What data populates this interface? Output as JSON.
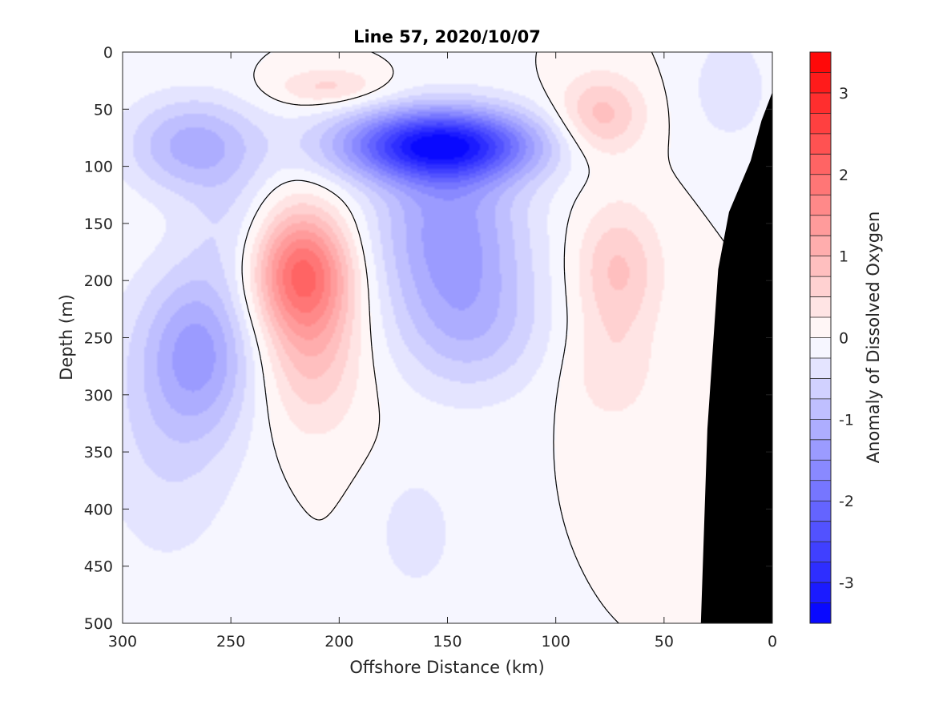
{
  "chart_data": {
    "type": "heatmap",
    "title": "Line 57, 2020/10/07",
    "xlabel": "Offshore Distance (km)",
    "ylabel": "Depth (m)",
    "colorbar_label": "Anomaly of Dissolved Oxygen",
    "xlim": [
      300,
      0
    ],
    "ylim": [
      0,
      500
    ],
    "x_reversed": true,
    "y_reversed": true,
    "x_ticks": [
      300,
      250,
      200,
      150,
      100,
      50,
      0
    ],
    "y_ticks": [
      0,
      50,
      100,
      150,
      200,
      250,
      300,
      350,
      400,
      450,
      500
    ],
    "colorbar_range": [
      -3.5,
      3.5
    ],
    "colorbar_ticks": [
      -3,
      -2,
      -1,
      0,
      1,
      2,
      3
    ],
    "colorbar_levels": 28,
    "colormap": {
      "negative": "#0000ff",
      "zero": "#ffffff",
      "positive": "#ff0000"
    },
    "zero_contour_color": "#000000",
    "bottom_fill_color": "#000000",
    "features": [
      {
        "kind": "anomaly",
        "x": 155,
        "depth": 80,
        "value": -3.0,
        "sx": 32,
        "sd": 22
      },
      {
        "kind": "anomaly",
        "x": 150,
        "depth": 150,
        "value": -1.3,
        "sx": 25,
        "sd": 55
      },
      {
        "kind": "anomaly",
        "x": 140,
        "depth": 240,
        "value": -0.8,
        "sx": 25,
        "sd": 45
      },
      {
        "kind": "anomaly",
        "x": 268,
        "depth": 80,
        "value": -1.1,
        "sx": 22,
        "sd": 30
      },
      {
        "kind": "anomaly",
        "x": 265,
        "depth": 260,
        "value": -1.1,
        "sx": 18,
        "sd": 50
      },
      {
        "kind": "anomaly",
        "x": 280,
        "depth": 330,
        "value": -0.5,
        "sx": 25,
        "sd": 90
      },
      {
        "kind": "anomaly",
        "x": 250,
        "depth": 150,
        "value": -0.4,
        "sx": 15,
        "sd": 40
      },
      {
        "kind": "anomaly",
        "x": 165,
        "depth": 420,
        "value": -0.4,
        "sx": 14,
        "sd": 40
      },
      {
        "kind": "anomaly",
        "x": 20,
        "depth": 30,
        "value": -0.4,
        "sx": 15,
        "sd": 40
      },
      {
        "kind": "anomaly",
        "x": 218,
        "depth": 190,
        "value": 1.9,
        "sx": 16,
        "sd": 38
      },
      {
        "kind": "anomaly",
        "x": 213,
        "depth": 260,
        "value": 0.8,
        "sx": 16,
        "sd": 50
      },
      {
        "kind": "anomaly",
        "x": 80,
        "depth": 55,
        "value": 0.9,
        "sx": 14,
        "sd": 25
      },
      {
        "kind": "anomaly",
        "x": 72,
        "depth": 190,
        "value": 0.8,
        "sx": 14,
        "sd": 40
      },
      {
        "kind": "anomaly",
        "x": 75,
        "depth": 280,
        "value": 0.4,
        "sx": 15,
        "sd": 35
      },
      {
        "kind": "anomaly",
        "x": 205,
        "depth": 30,
        "value": 0.6,
        "sx": 18,
        "sd": 12
      }
    ],
    "bottom_profile": [
      [
        0,
        35
      ],
      [
        5,
        60
      ],
      [
        10,
        95
      ],
      [
        20,
        140
      ],
      [
        25,
        190
      ],
      [
        30,
        330
      ],
      [
        33,
        500
      ]
    ]
  }
}
